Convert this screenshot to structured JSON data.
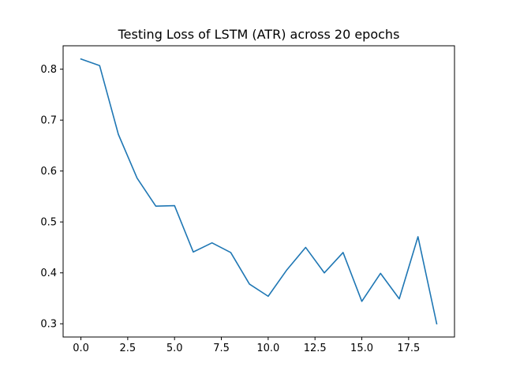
{
  "chart_data": {
    "type": "line",
    "title": "Testing Loss of LSTM (ATR) across 20 epochs",
    "xlabel": "",
    "ylabel": "",
    "x": [
      0,
      1,
      2,
      3,
      4,
      5,
      6,
      7,
      8,
      9,
      10,
      11,
      12,
      13,
      14,
      15,
      16,
      17,
      18,
      19
    ],
    "series": [
      {
        "color": "#1f77b4",
        "values": [
          0.82,
          0.807,
          0.672,
          0.586,
          0.531,
          0.532,
          0.441,
          0.459,
          0.44,
          0.378,
          0.354,
          0.406,
          0.45,
          0.4,
          0.44,
          0.344,
          0.399,
          0.349,
          0.471,
          0.3
        ]
      }
    ],
    "xlim": [
      -0.95,
      19.95
    ],
    "ylim": [
      0.274,
      0.846
    ],
    "xticks": [
      0.0,
      2.5,
      5.0,
      7.5,
      10.0,
      12.5,
      15.0,
      17.5
    ],
    "xtick_labels": [
      "0.0",
      "2.5",
      "5.0",
      "7.5",
      "10.0",
      "12.5",
      "15.0",
      "17.5"
    ],
    "yticks": [
      0.3,
      0.4,
      0.5,
      0.6,
      0.7,
      0.8
    ],
    "ytick_labels": [
      "0.3",
      "0.4",
      "0.5",
      "0.6",
      "0.7",
      "0.8"
    ],
    "grid": false,
    "legend": "none"
  }
}
